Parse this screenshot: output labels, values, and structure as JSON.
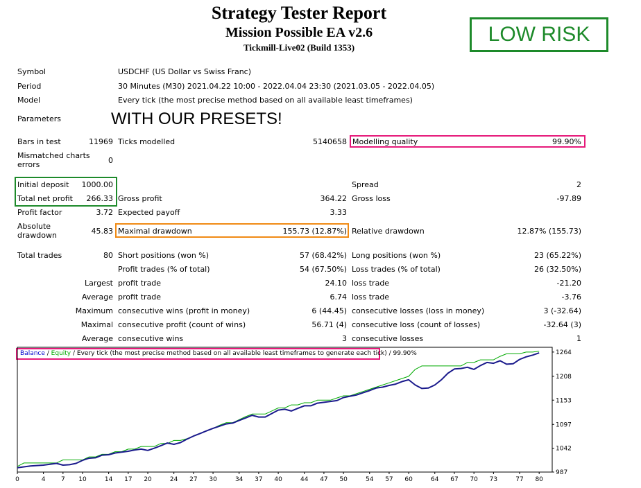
{
  "header": {
    "title": "Strategy Tester Report",
    "ea_name": "Mission Possible EA v2.6",
    "account": "Tickmill-Live02 (Build 1353)",
    "badge": "LOW RISK"
  },
  "info": {
    "symbol_label": "Symbol",
    "symbol_value": "USDCHF (US Dollar vs Swiss Franc)",
    "period_label": "Period",
    "period_value": "30 Minutes (M30) 2021.04.22 10:00 - 2022.04.04 23:30 (2021.03.05 - 2022.04.05)",
    "model_label": "Model",
    "model_value": "Every tick (the most precise method based on all available least timeframes)",
    "parameters_label": "Parameters",
    "parameters_value": "WITH OUR PRESETS!"
  },
  "stats": {
    "bars_label": "Bars in test",
    "bars_value": "11969",
    "ticks_label": "Ticks modelled",
    "ticks_value": "5140658",
    "quality_label": "Modelling quality",
    "quality_value": "99.90%",
    "mismatch_label_1": "Mismatched charts",
    "mismatch_label_2": "errors",
    "mismatch_value": "0",
    "deposit_label": "Initial deposit",
    "deposit_value": "1000.00",
    "spread_label": "Spread",
    "spread_value": "2",
    "net_label": "Total net profit",
    "net_value": "266.33",
    "gross_profit_label": "Gross profit",
    "gross_profit_value": "364.22",
    "gross_loss_label": "Gross loss",
    "gross_loss_value": "-97.89",
    "pf_label": "Profit factor",
    "pf_value": "3.72",
    "payoff_label": "Expected payoff",
    "payoff_value": "3.33",
    "abs_dd_label_1": "Absolute",
    "abs_dd_label_2": "drawdown",
    "abs_dd_value": "45.83",
    "max_dd_label": "Maximal drawdown",
    "max_dd_value": "155.73 (12.87%)",
    "rel_dd_label": "Relative drawdown",
    "rel_dd_value": "12.87% (155.73)",
    "trades_label": "Total trades",
    "trades_value": "80",
    "short_label": "Short positions (won %)",
    "short_value": "57 (68.42%)",
    "long_label": "Long positions (won %)",
    "long_value": "23 (65.22%)",
    "profit_trades_label": "Profit trades (% of total)",
    "profit_trades_value": "54 (67.50%)",
    "loss_trades_label": "Loss trades (% of total)",
    "loss_trades_value": "26 (32.50%)",
    "largest_label": "Largest",
    "largest_profit_label": "profit trade",
    "largest_profit_value": "24.10",
    "largest_loss_label": "loss trade",
    "largest_loss_value": "-21.20",
    "average_label": "Average",
    "average_profit_label": "profit trade",
    "average_profit_value": "6.74",
    "average_loss_label": "loss trade",
    "average_loss_value": "-3.76",
    "maximum_label": "Maximum",
    "max_wins_label": "consecutive wins (profit in money)",
    "max_wins_value": "6 (44.45)",
    "max_losses_label": "consecutive losses (loss in money)",
    "max_losses_value": "3 (-32.64)",
    "maximal_label": "Maximal",
    "maximal_profit_label": "consecutive profit (count of wins)",
    "maximal_profit_value": "56.71 (4)",
    "maximal_loss_label": "consecutive loss (count of losses)",
    "maximal_loss_value": "-32.64 (3)",
    "avg2_label": "Average",
    "avg_wins_label": "consecutive wins",
    "avg_wins_value": "3",
    "avg_losses_label": "consecutive losses",
    "avg_losses_value": "1"
  },
  "chart_header": {
    "balance": "Balance",
    "sep1": " / ",
    "equity": "Equity",
    "rest": " / Every tick (the most precise method based on all available least timeframes to generate each tick)",
    "sep2": " / ",
    "quality": "99.90%"
  },
  "chart_data": {
    "type": "line",
    "x_ticks": [
      "0",
      "4",
      "7",
      "10",
      "14",
      "17",
      "20",
      "24",
      "27",
      "30",
      "34",
      "37",
      "40",
      "44",
      "47",
      "50",
      "54",
      "57",
      "60",
      "64",
      "67",
      "70",
      "73",
      "77",
      "80"
    ],
    "y_ticks": [
      "1264",
      "1208",
      "1153",
      "1097",
      "1042",
      "987"
    ],
    "xlim": [
      0,
      82
    ],
    "ylim": [
      987,
      1275
    ],
    "series": [
      {
        "name": "Balance",
        "color": "#00aa00",
        "x": [
          0,
          1,
          2,
          3,
          4,
          5,
          6,
          7,
          8,
          9,
          10,
          11,
          12,
          13,
          14,
          15,
          16,
          17,
          18,
          19,
          20,
          21,
          22,
          23,
          24,
          25,
          26,
          27,
          28,
          29,
          30,
          31,
          32,
          33,
          34,
          35,
          36,
          37,
          38,
          39,
          40,
          41,
          42,
          43,
          44,
          45,
          46,
          47,
          48,
          49,
          50,
          51,
          52,
          53,
          54,
          55,
          56,
          57,
          58,
          59,
          60,
          61,
          62,
          63,
          64,
          65,
          66,
          67,
          68,
          69,
          70,
          71,
          72,
          73,
          74,
          75,
          76,
          77,
          78,
          79,
          80
        ],
        "y": [
          1000,
          1008,
          1008,
          1008,
          1008,
          1008,
          1008,
          1015,
          1015,
          1015,
          1015,
          1022,
          1022,
          1028,
          1028,
          1034,
          1034,
          1040,
          1040,
          1046,
          1046,
          1046,
          1053,
          1053,
          1060,
          1060,
          1064,
          1070,
          1076,
          1082,
          1088,
          1095,
          1101,
          1101,
          1108,
          1115,
          1121,
          1121,
          1121,
          1128,
          1135,
          1135,
          1142,
          1142,
          1147,
          1147,
          1153,
          1153,
          1153,
          1158,
          1163,
          1163,
          1168,
          1173,
          1178,
          1183,
          1188,
          1193,
          1198,
          1203,
          1208,
          1224,
          1232,
          1232,
          1232,
          1232,
          1232,
          1232,
          1232,
          1240,
          1240,
          1246,
          1246,
          1246,
          1254,
          1260,
          1260,
          1260,
          1264,
          1264,
          1266
        ]
      },
      {
        "name": "Equity",
        "color": "#1a1a8c",
        "x": [
          0,
          1,
          2,
          3,
          4,
          5,
          6,
          7,
          8,
          9,
          10,
          11,
          12,
          13,
          14,
          15,
          16,
          17,
          18,
          19,
          20,
          21,
          22,
          23,
          24,
          25,
          26,
          27,
          28,
          29,
          30,
          31,
          32,
          33,
          34,
          35,
          36,
          37,
          38,
          39,
          40,
          41,
          42,
          43,
          44,
          45,
          46,
          47,
          48,
          49,
          50,
          51,
          52,
          53,
          54,
          55,
          56,
          57,
          58,
          59,
          60,
          61,
          62,
          63,
          64,
          65,
          66,
          67,
          68,
          69,
          70,
          71,
          72,
          73,
          74,
          75,
          76,
          77,
          78,
          79,
          80
        ],
        "y": [
          997,
          999,
          1001,
          1002,
          1003,
          1005,
          1007,
          1003,
          1004,
          1007,
          1014,
          1019,
          1020,
          1026,
          1027,
          1031,
          1033,
          1035,
          1038,
          1040,
          1037,
          1042,
          1048,
          1054,
          1051,
          1055,
          1063,
          1070,
          1076,
          1082,
          1088,
          1093,
          1098,
          1100,
          1106,
          1112,
          1118,
          1114,
          1114,
          1122,
          1130,
          1132,
          1128,
          1134,
          1140,
          1140,
          1146,
          1148,
          1150,
          1152,
          1159,
          1162,
          1165,
          1170,
          1175,
          1181,
          1183,
          1187,
          1190,
          1196,
          1200,
          1188,
          1180,
          1181,
          1188,
          1200,
          1215,
          1225,
          1226,
          1229,
          1224,
          1233,
          1240,
          1238,
          1244,
          1236,
          1237,
          1247,
          1253,
          1257,
          1262
        ]
      }
    ]
  }
}
